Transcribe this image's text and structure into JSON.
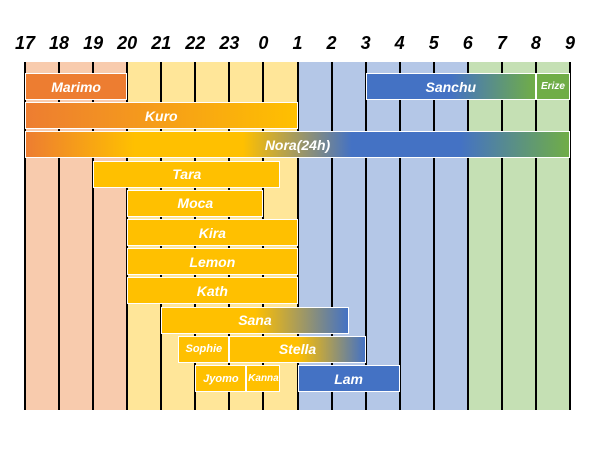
{
  "chart_data": {
    "type": "gantt",
    "hours": [
      "17",
      "18",
      "19",
      "20",
      "21",
      "22",
      "23",
      "0",
      "1",
      "2",
      "3",
      "4",
      "5",
      "6",
      "7",
      "8",
      "9"
    ],
    "period_colors": {
      "evening": "#f8cbad",
      "night": "#ffe699",
      "late_night": "#b4c7e7",
      "morning": "#c5e0b4"
    },
    "period_ranges": [
      {
        "period": "evening",
        "start": "17",
        "end": "20"
      },
      {
        "period": "night",
        "start": "20",
        "end": "1"
      },
      {
        "period": "late_night",
        "start": "1",
        "end": "6"
      },
      {
        "period": "morning",
        "start": "6",
        "end": "9"
      }
    ],
    "bars": [
      {
        "name": "Marimo",
        "start": "17",
        "end": "20",
        "row": 0,
        "colors": [
          "#ed7d31"
        ]
      },
      {
        "name": "Sanchu",
        "start": "3",
        "end": "8",
        "row": 0,
        "colors": [
          "#4472c4",
          "#4472c4",
          "#70ad47"
        ]
      },
      {
        "name": "Erize",
        "start": "8",
        "end": "9",
        "row": 0,
        "colors": [
          "#70ad47"
        ]
      },
      {
        "name": "Kuro",
        "start": "17",
        "end": "1",
        "row": 1,
        "colors": [
          "#ed7d31",
          "#ffc000"
        ]
      },
      {
        "name": "Nora(24h)",
        "start": "17",
        "end": "9",
        "row": 2,
        "colors": [
          "#ed7d31",
          "#ffc000",
          "#ffc000",
          "#4472c4",
          "#4472c4",
          "#70ad47"
        ]
      },
      {
        "name": "Tara",
        "start": "19",
        "end": "0.5",
        "row": 3,
        "colors": [
          "#ffc000"
        ]
      },
      {
        "name": "Moca",
        "start": "20",
        "end": "0",
        "row": 4,
        "colors": [
          "#ffc000"
        ]
      },
      {
        "name": "Kira",
        "start": "20",
        "end": "1",
        "row": 5,
        "colors": [
          "#ffc000"
        ]
      },
      {
        "name": "Lemon",
        "start": "20",
        "end": "1",
        "row": 6,
        "colors": [
          "#ffc000"
        ]
      },
      {
        "name": "Kath",
        "start": "20",
        "end": "1",
        "row": 7,
        "colors": [
          "#ffc000"
        ]
      },
      {
        "name": "Sana",
        "start": "21",
        "end": "2.5",
        "row": 8,
        "colors": [
          "#ffc000",
          "#ffc000",
          "#4472c4"
        ]
      },
      {
        "name": "Sophie",
        "start": "21.5",
        "end": "23",
        "row": 9,
        "colors": [
          "#ffc000"
        ]
      },
      {
        "name": "Stella",
        "start": "23",
        "end": "3",
        "row": 9,
        "colors": [
          "#ffc000",
          "#ffc000",
          "#4472c4"
        ]
      },
      {
        "name": "Jyomo",
        "start": "22",
        "end": "23.5",
        "row": 10,
        "colors": [
          "#ffc000"
        ]
      },
      {
        "name": "Kanna",
        "start": "23.5",
        "end": "0.5",
        "row": 10,
        "colors": [
          "#ffc000"
        ]
      },
      {
        "name": "Lam",
        "start": "1",
        "end": "4",
        "row": 10,
        "colors": [
          "#4472c4"
        ]
      }
    ]
  }
}
